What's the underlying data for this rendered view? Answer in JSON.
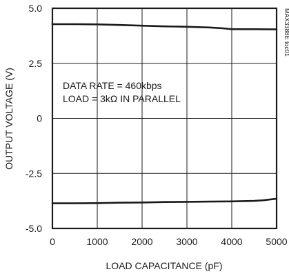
{
  "chart_data": {
    "type": "line",
    "title": "",
    "xlabel": "LOAD CAPACITANCE (pF)",
    "ylabel": "OUTPUT VOLTAGE (V)",
    "xlim": [
      0,
      5000
    ],
    "ylim": [
      -5.0,
      5.0
    ],
    "grid": true,
    "x_ticks": [
      0,
      1000,
      2000,
      3000,
      4000,
      5000
    ],
    "x_tick_labels": [
      "0",
      "1000",
      "2000",
      "3000",
      "4000",
      "5000"
    ],
    "y_ticks": [
      5.0,
      2.5,
      0,
      -2.5,
      -5.0
    ],
    "y_tick_labels": [
      "5.0",
      "2.5",
      "0",
      "-2.5",
      "-5.0"
    ],
    "annotations": [
      "DATA RATE = 460kbps",
      "LOAD = 3kΩ IN PARALLEL"
    ],
    "watermark": "MAX3388E toc01",
    "series": [
      {
        "x": [
          0,
          500,
          1000,
          1500,
          2000,
          2500,
          3000,
          3500,
          3800,
          4000,
          4500,
          5000
        ],
        "values": [
          4.28,
          4.28,
          4.27,
          4.24,
          4.21,
          4.18,
          4.16,
          4.13,
          4.09,
          4.05,
          4.05,
          4.04
        ]
      },
      {
        "x": [
          0,
          500,
          1000,
          1500,
          2000,
          2500,
          3000,
          3500,
          4000,
          4500,
          4700,
          5000
        ],
        "values": [
          -3.86,
          -3.86,
          -3.85,
          -3.83,
          -3.82,
          -3.8,
          -3.79,
          -3.78,
          -3.77,
          -3.75,
          -3.72,
          -3.65
        ]
      }
    ],
    "colors": {
      "line": "#1a1a1a",
      "grid": "#1a1a1a",
      "frame": "#1a1a1a"
    }
  }
}
